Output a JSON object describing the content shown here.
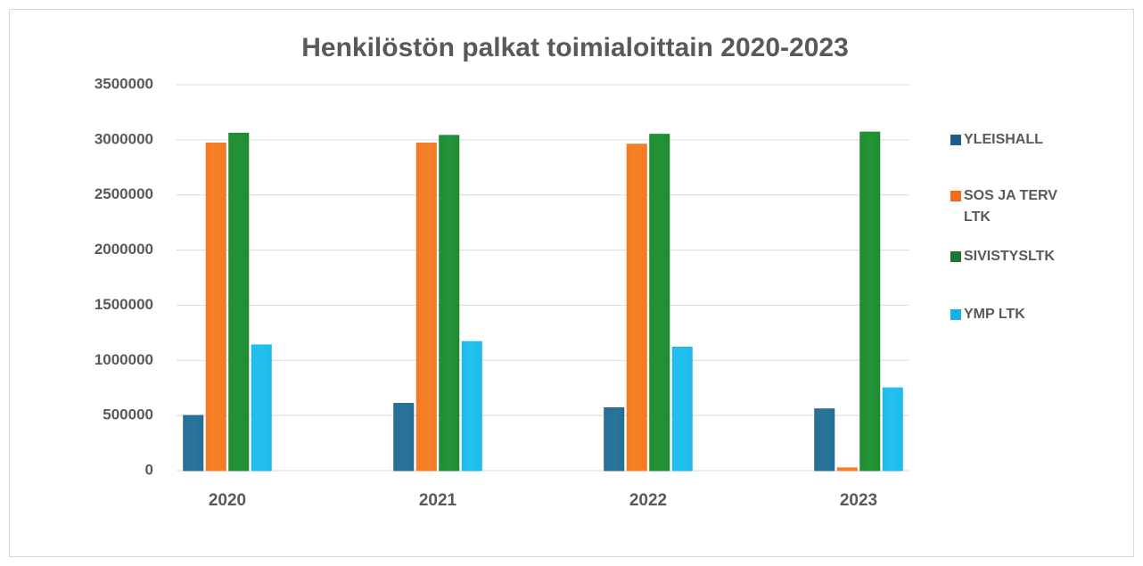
{
  "chart_data": {
    "type": "bar",
    "title": "Henkilöstön palkat toimialoittain 2020-2023",
    "categories": [
      "2020",
      "2021",
      "2022",
      "2023"
    ],
    "series": [
      {
        "name": "YLEISHALL",
        "color": "#1f5f86",
        "values": [
          500000,
          610000,
          570000,
          560000
        ]
      },
      {
        "name": "SOS JA TERV LTK",
        "color": "#f26b1d",
        "values": [
          2970000,
          2970000,
          2960000,
          25000
        ]
      },
      {
        "name": "SIVISTYSLTK",
        "color": "#1a7d2a",
        "values": [
          3060000,
          3040000,
          3050000,
          3070000
        ]
      },
      {
        "name": "YMP LTK",
        "color": "#1aaee6",
        "values": [
          1140000,
          1170000,
          1120000,
          750000
        ]
      }
    ],
    "ylim": [
      0,
      3500000
    ],
    "yticks": [
      0,
      500000,
      1000000,
      1500000,
      2000000,
      2500000,
      3000000,
      3500000
    ],
    "grid": true,
    "legend": "right"
  }
}
